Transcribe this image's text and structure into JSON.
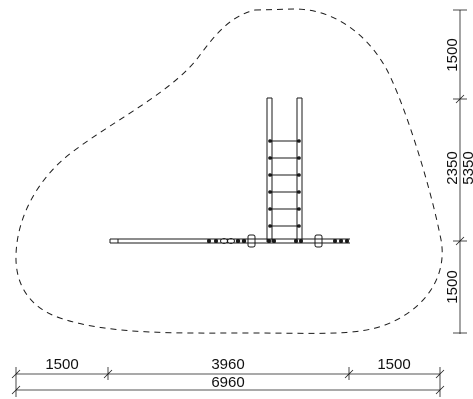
{
  "drawing": {
    "stroke_color": "#1a1a1a",
    "background_color": "#ffffff",
    "safety_zone": {
      "line_style": "dashed"
    }
  },
  "dimensions": {
    "bottom": {
      "left": "1500",
      "middle": "3960",
      "right": "1500",
      "total": "6960"
    },
    "right": {
      "top": "1500",
      "middle": "2350",
      "bottom": "1500",
      "total": "5350"
    }
  }
}
